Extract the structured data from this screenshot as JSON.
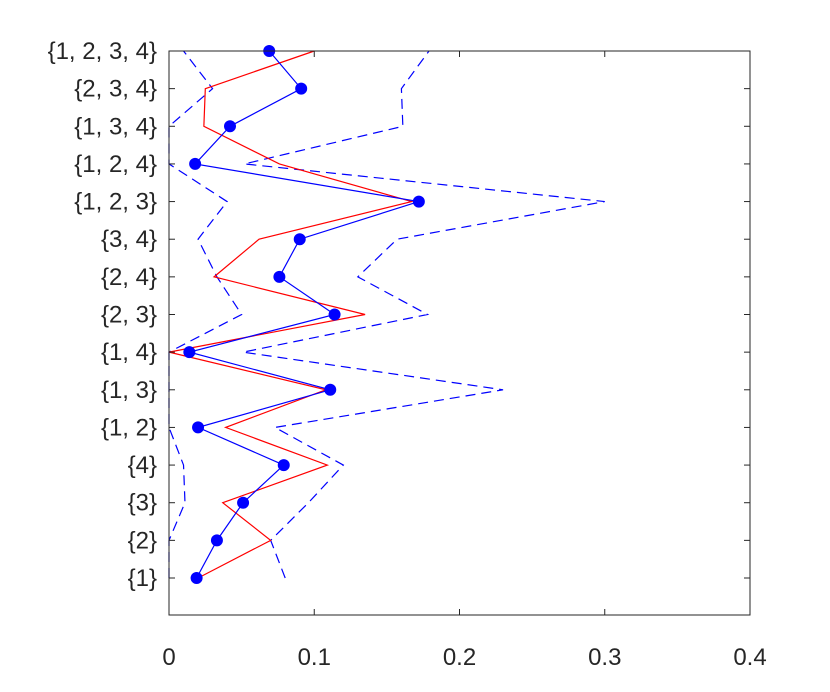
{
  "chart_data": {
    "type": "line",
    "title": "",
    "xlabel": "",
    "ylabel": "",
    "xlim": [
      0,
      0.4
    ],
    "x_ticks": [
      "0",
      "0.1",
      "0.2",
      "0.3",
      "0.4"
    ],
    "x_tick_values": [
      0,
      0.1,
      0.2,
      0.3,
      0.4
    ],
    "categories": [
      "{1}",
      "{2}",
      "{3}",
      "{4}",
      "{1, 2}",
      "{1, 3}",
      "{1, 4}",
      "{2, 3}",
      "{2, 4}",
      "{3, 4}",
      "{1, 2, 3}",
      "{1, 2, 4}",
      "{1, 3, 4}",
      "{2, 3, 4}",
      "{1, 2, 3, 4}"
    ],
    "grid": false,
    "legend": "none",
    "series": [
      {
        "color": "#0000ff",
        "style": "solid-with-markers",
        "values": [
          0.019,
          0.033,
          0.051,
          0.079,
          0.02,
          0.111,
          0.014,
          0.114,
          0.076,
          0.09,
          0.172,
          0.018,
          0.042,
          0.091,
          0.069
        ]
      },
      {
        "color": "#ff0000",
        "style": "solid",
        "values": [
          0.02,
          0.07,
          0.037,
          0.109,
          0.039,
          0.108,
          0.0,
          0.135,
          0.031,
          0.062,
          0.167,
          0.076,
          0.024,
          0.025,
          0.1
        ]
      },
      {
        "color": "#0000ff",
        "style": "dashed",
        "values": [
          0.08,
          0.07,
          0.096,
          0.12,
          0.073,
          0.23,
          0.051,
          0.178,
          0.13,
          0.157,
          0.3,
          0.052,
          0.161,
          0.16,
          0.179
        ]
      },
      {
        "color": "#0000ff",
        "style": "dashed",
        "values": [
          0.0,
          0.0,
          0.011,
          0.01,
          0.0,
          0.0,
          0.0,
          0.05,
          0.033,
          0.02,
          0.04,
          0.0,
          0.0,
          0.03,
          0.01
        ]
      }
    ]
  }
}
